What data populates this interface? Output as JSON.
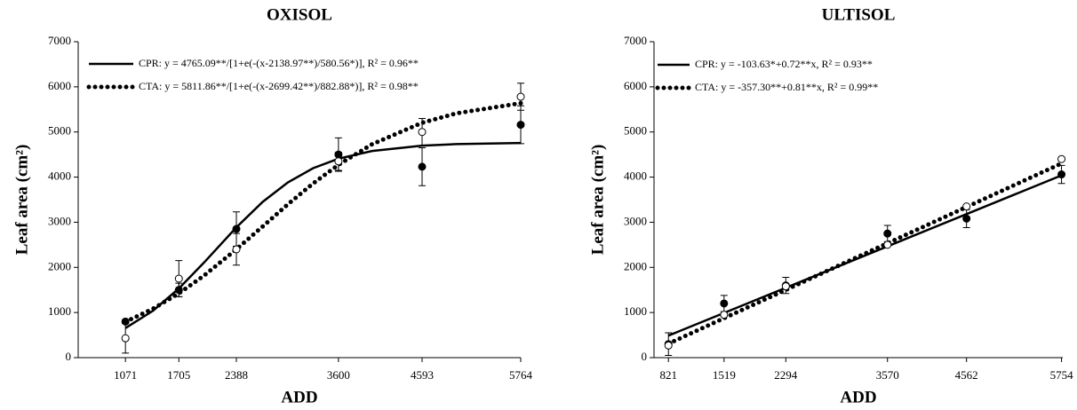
{
  "chart_data": [
    {
      "type": "scatter",
      "title": "OXISOL",
      "xlabel": "ADD",
      "ylabel": "Leaf area (cm²)",
      "xlim": [
        510,
        5764
      ],
      "ylim": [
        0,
        7000
      ],
      "xticks": [
        1071,
        1705,
        2388,
        3600,
        4593,
        5764
      ],
      "yticks": [
        0,
        1000,
        2000,
        3000,
        4000,
        5000,
        6000,
        7000
      ],
      "series": [
        {
          "name": "CPR: y = 4765.09**/[1+e(-(x-2138.97**)/580.56*)], R² = 0.96**",
          "marker": "filled",
          "line": "solid",
          "color": "#000000",
          "x": [
            1071,
            1705,
            2388,
            3600,
            4593,
            5764
          ],
          "values": [
            800,
            1500,
            2850,
            4500,
            4230,
            5160
          ],
          "errors": [
            null,
            150,
            380,
            370,
            420,
            420
          ],
          "fit_x": [
            1071,
            1400,
            1705,
            2000,
            2388,
            2700,
            3000,
            3300,
            3600,
            4000,
            4593,
            5000,
            5764
          ],
          "fit_values": [
            654,
            1043,
            1532,
            2099,
            2886,
            3451,
            3884,
            4198,
            4408,
            4580,
            4697,
            4731,
            4756
          ]
        },
        {
          "name": "CTA: y = 5811.86**/[1+e(-(x-2699.42**)/882.88*)], R² = 0.98**",
          "marker": "open",
          "line": "dotted",
          "color": "#000000",
          "x": [
            1071,
            1705,
            2388,
            3600,
            4593,
            5764
          ],
          "values": [
            430,
            1750,
            2400,
            4350,
            5000,
            5780
          ],
          "errors": [
            330,
            400,
            350,
            200,
            300,
            300
          ],
          "fit_x": [
            1071,
            1400,
            1705,
            2000,
            2388,
            2700,
            3000,
            3300,
            3600,
            4000,
            4593,
            5000,
            5764
          ],
          "fit_values": [
            794,
            1086,
            1424,
            1811,
            2400,
            2906,
            3397,
            3859,
            4273,
            4729,
            5203,
            5413,
            5637
          ]
        }
      ]
    },
    {
      "type": "scatter",
      "title": "ULTISOL",
      "xlabel": "ADD",
      "ylabel": "Leaf area (cm²)",
      "xlim": [
        640,
        5770
      ],
      "ylim": [
        0,
        7000
      ],
      "xticks": [
        821,
        1519,
        2294,
        3570,
        4562,
        5754
      ],
      "yticks": [
        0,
        1000,
        2000,
        3000,
        4000,
        5000,
        6000,
        7000
      ],
      "series": [
        {
          "name": "CPR: y = -103.63*+0.72**x, R² = 0.93**",
          "marker": "filled",
          "line": "solid",
          "color": "#000000",
          "x": [
            821,
            1519,
            2294,
            3570,
            4562,
            5754
          ],
          "values": [
            300,
            1200,
            1600,
            2750,
            3080,
            4060
          ],
          "errors": [
            250,
            180,
            180,
            180,
            200,
            200
          ],
          "fit_x": [
            821,
            5754
          ],
          "fit_values": [
            487,
            4039
          ]
        },
        {
          "name": "CTA: y = -357.30**+0.81**x, R² = 0.99**",
          "marker": "open",
          "line": "dotted",
          "color": "#000000",
          "x": [
            821,
            1519,
            2294,
            3570,
            4562,
            5754
          ],
          "values": [
            270,
            950,
            1580,
            2500,
            3350,
            4400
          ],
          "errors": [
            null,
            null,
            null,
            null,
            null,
            null
          ],
          "fit_x": [
            821,
            5754
          ],
          "fit_values": [
            308,
            4303
          ]
        }
      ]
    }
  ]
}
